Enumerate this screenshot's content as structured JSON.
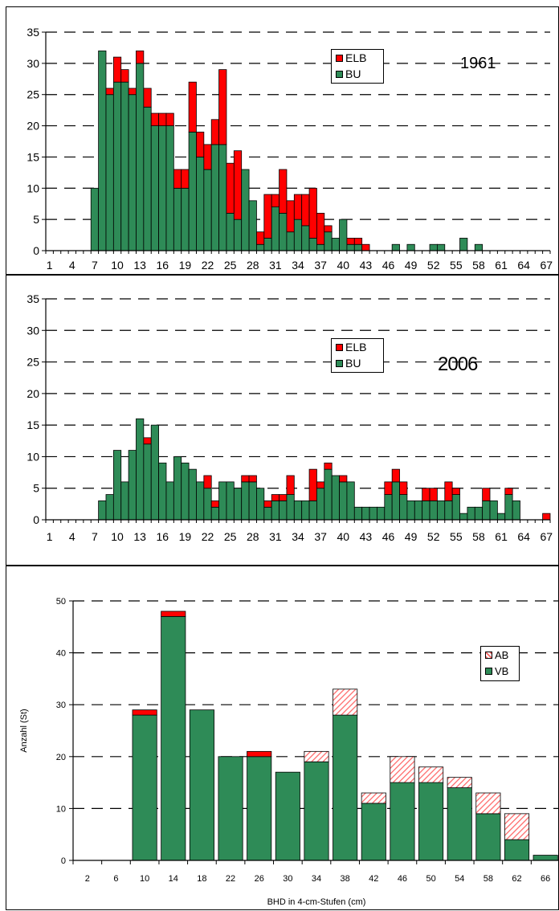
{
  "colors": {
    "green": "#2e8b57",
    "red": "#ff0000",
    "hatch": "#ff6666"
  },
  "chart_data": [
    {
      "type": "bar",
      "stacked": true,
      "annotation": "1961",
      "xlabel": "",
      "ylabel": "",
      "ylim": [
        0,
        35
      ],
      "yticks": [
        "0",
        "5",
        "10",
        "15",
        "20",
        "25",
        "30",
        "35"
      ],
      "x": [
        1,
        2,
        3,
        4,
        5,
        6,
        7,
        8,
        9,
        10,
        11,
        12,
        13,
        14,
        15,
        16,
        17,
        18,
        19,
        20,
        21,
        22,
        23,
        24,
        25,
        26,
        27,
        28,
        29,
        30,
        31,
        32,
        33,
        34,
        35,
        36,
        37,
        38,
        39,
        40,
        41,
        42,
        43,
        44,
        45,
        46,
        47,
        48,
        49,
        50,
        51,
        52,
        53,
        54,
        55,
        56,
        57,
        58,
        59,
        60,
        61,
        62,
        63,
        64,
        65,
        66,
        67
      ],
      "xtick_labels": [
        "1",
        "4",
        "7",
        "10",
        "13",
        "16",
        "19",
        "22",
        "25",
        "28",
        "31",
        "34",
        "37",
        "40",
        "43",
        "46",
        "49",
        "52",
        "55",
        "58",
        "61",
        "64",
        "67"
      ],
      "legend": [
        "ELB",
        "BU"
      ],
      "legend_position": "top-right",
      "grid": "dashed horizontal",
      "series": [
        {
          "name": "BU",
          "values": [
            0,
            0,
            0,
            0,
            0,
            0,
            10,
            32,
            25,
            27,
            27,
            25,
            30,
            23,
            20,
            20,
            20,
            10,
            10,
            19,
            15,
            13,
            17,
            17,
            6,
            5,
            13,
            8,
            1,
            2,
            7,
            6,
            3,
            5,
            4,
            2,
            1,
            3,
            2,
            5,
            1,
            1,
            0,
            0,
            0,
            0,
            1,
            0,
            1,
            0,
            0,
            1,
            1,
            0,
            0,
            2,
            0,
            1,
            0,
            0,
            0,
            0,
            0,
            0,
            0,
            0,
            0
          ]
        },
        {
          "name": "ELB",
          "values": [
            0,
            0,
            0,
            0,
            0,
            0,
            0,
            0,
            1,
            4,
            2,
            1,
            2,
            3,
            2,
            2,
            2,
            3,
            3,
            8,
            4,
            4,
            4,
            12,
            8,
            11,
            0,
            0,
            2,
            7,
            2,
            7,
            5,
            4,
            5,
            8,
            5,
            1,
            0,
            0,
            1,
            1,
            1,
            0,
            0,
            0,
            0,
            0,
            0,
            0,
            0,
            0,
            0,
            0,
            0,
            0,
            0,
            0,
            0,
            0,
            0,
            0,
            0,
            0,
            0,
            0,
            0
          ]
        }
      ]
    },
    {
      "type": "bar",
      "stacked": true,
      "annotation": "2006",
      "xlabel": "",
      "ylabel": "",
      "ylim": [
        0,
        35
      ],
      "yticks": [
        "0",
        "5",
        "10",
        "15",
        "20",
        "25",
        "30",
        "35"
      ],
      "x": [
        1,
        2,
        3,
        4,
        5,
        6,
        7,
        8,
        9,
        10,
        11,
        12,
        13,
        14,
        15,
        16,
        17,
        18,
        19,
        20,
        21,
        22,
        23,
        24,
        25,
        26,
        27,
        28,
        29,
        30,
        31,
        32,
        33,
        34,
        35,
        36,
        37,
        38,
        39,
        40,
        41,
        42,
        43,
        44,
        45,
        46,
        47,
        48,
        49,
        50,
        51,
        52,
        53,
        54,
        55,
        56,
        57,
        58,
        59,
        60,
        61,
        62,
        63,
        64,
        65,
        66,
        67
      ],
      "xtick_labels": [
        "1",
        "4",
        "7",
        "10",
        "13",
        "16",
        "19",
        "22",
        "25",
        "28",
        "31",
        "34",
        "37",
        "40",
        "43",
        "46",
        "49",
        "52",
        "55",
        "58",
        "61",
        "64",
        "67"
      ],
      "legend": [
        "ELB",
        "BU"
      ],
      "legend_position": "top-right",
      "grid": "dashed horizontal",
      "series": [
        {
          "name": "BU",
          "values": [
            0,
            0,
            0,
            0,
            0,
            0,
            0,
            3,
            4,
            11,
            6,
            11,
            16,
            12,
            15,
            9,
            6,
            10,
            9,
            8,
            6,
            5,
            2,
            6,
            6,
            5,
            6,
            6,
            5,
            2,
            3,
            3,
            4,
            3,
            3,
            3,
            5,
            8,
            7,
            6,
            6,
            2,
            2,
            2,
            2,
            4,
            6,
            4,
            3,
            3,
            3,
            3,
            3,
            3,
            4,
            1,
            2,
            2,
            3,
            3,
            1,
            4,
            3,
            0,
            0,
            0,
            0
          ]
        },
        {
          "name": "ELB",
          "values": [
            0,
            0,
            0,
            0,
            0,
            0,
            0,
            0,
            0,
            0,
            0,
            0,
            0,
            1,
            0,
            0,
            0,
            0,
            0,
            0,
            0,
            2,
            1,
            0,
            0,
            0,
            1,
            1,
            0,
            1,
            1,
            1,
            3,
            0,
            0,
            5,
            1,
            1,
            0,
            1,
            0,
            0,
            0,
            0,
            0,
            2,
            2,
            2,
            0,
            0,
            2,
            2,
            0,
            3,
            1,
            0,
            0,
            0,
            2,
            0,
            0,
            1,
            0,
            0,
            0,
            0,
            1
          ]
        }
      ]
    },
    {
      "type": "bar",
      "stacked": true,
      "title": "",
      "xlabel": "BHD in 4-cm-Stufen (cm)",
      "ylabel": "Anzahl (St)",
      "ylim": [
        0,
        50
      ],
      "yticks": [
        "0",
        "10",
        "20",
        "30",
        "40",
        "50"
      ],
      "categories": [
        "2",
        "6",
        "10",
        "14",
        "18",
        "22",
        "26",
        "30",
        "34",
        "38",
        "42",
        "46",
        "50",
        "54",
        "58",
        "62",
        "66"
      ],
      "legend": [
        "AB",
        "VB"
      ],
      "legend_position": "right",
      "grid": "dashed horizontal",
      "series": [
        {
          "name": "VB",
          "values": [
            0,
            0,
            28,
            47,
            29,
            20,
            20,
            17,
            19,
            28,
            11,
            15,
            15,
            14,
            9,
            4,
            1
          ]
        },
        {
          "name": "",
          "values": [
            0,
            0,
            1,
            1,
            0,
            0,
            1,
            0,
            0,
            0,
            0,
            0,
            0,
            0,
            0,
            0,
            0
          ]
        },
        {
          "name": "AB",
          "values": [
            0,
            0,
            0,
            0,
            0,
            0,
            0,
            0,
            2,
            5,
            2,
            5,
            3,
            2,
            4,
            5,
            0
          ]
        }
      ]
    }
  ]
}
